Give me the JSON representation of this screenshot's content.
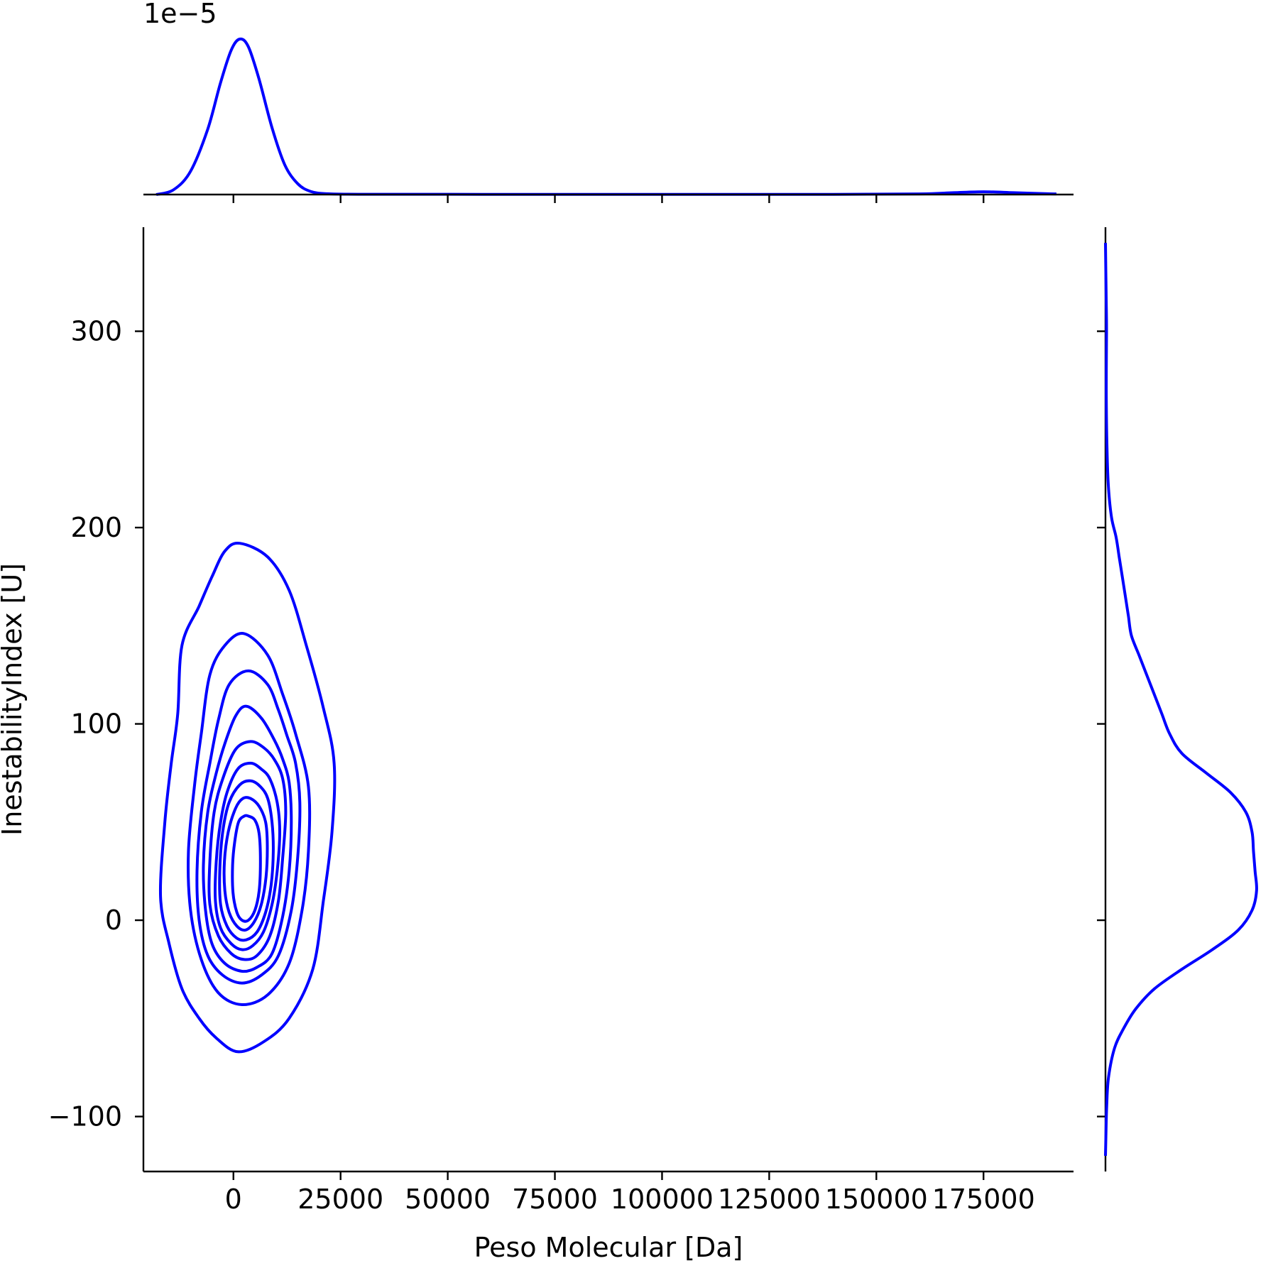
{
  "chart_data": {
    "type": "kde-jointplot",
    "color": "#0000ff",
    "xlabel": "Peso Molecular [Da]",
    "ylabel": "InestabilityIndex [U]",
    "xlim": [
      -21000,
      196000
    ],
    "ylim": [
      -128,
      353
    ],
    "x_ticks": [
      0,
      25000,
      50000,
      75000,
      100000,
      125000,
      150000,
      175000
    ],
    "x_tick_labels": [
      "0",
      "25000",
      "50000",
      "75000",
      "100000",
      "125000",
      "150000",
      "175000"
    ],
    "y_ticks": [
      -100,
      0,
      100,
      200,
      300
    ],
    "y_tick_labels": [
      "−100",
      "0",
      "100",
      "200",
      "300"
    ],
    "top_marginal": {
      "offset_label": "1e−5",
      "ymax": 1.0,
      "points": [
        [
          -18000,
          0.0
        ],
        [
          -14000,
          0.03
        ],
        [
          -10000,
          0.15
        ],
        [
          -6000,
          0.42
        ],
        [
          -3000,
          0.72
        ],
        [
          -500,
          0.93
        ],
        [
          1500,
          1.0
        ],
        [
          3500,
          0.95
        ],
        [
          6000,
          0.74
        ],
        [
          9000,
          0.43
        ],
        [
          12000,
          0.19
        ],
        [
          15000,
          0.07
        ],
        [
          18000,
          0.02
        ],
        [
          22000,
          0.005
        ],
        [
          30000,
          0.002
        ],
        [
          60000,
          0.0015
        ],
        [
          100000,
          0.0015
        ],
        [
          140000,
          0.0015
        ],
        [
          160000,
          0.004
        ],
        [
          168000,
          0.012
        ],
        [
          175000,
          0.018
        ],
        [
          182000,
          0.012
        ],
        [
          190000,
          0.005
        ],
        [
          192000,
          0.004
        ]
      ]
    },
    "right_marginal": {
      "xmax": 1.0,
      "points": [
        [
          -120,
          0.0
        ],
        [
          -110,
          0.003
        ],
        [
          -95,
          0.008
        ],
        [
          -80,
          0.02
        ],
        [
          -65,
          0.06
        ],
        [
          -55,
          0.12
        ],
        [
          -45,
          0.2
        ],
        [
          -35,
          0.32
        ],
        [
          -25,
          0.5
        ],
        [
          -15,
          0.7
        ],
        [
          -5,
          0.87
        ],
        [
          5,
          0.96
        ],
        [
          15,
          0.99
        ],
        [
          25,
          0.98
        ],
        [
          35,
          0.97
        ],
        [
          45,
          0.96
        ],
        [
          55,
          0.92
        ],
        [
          65,
          0.82
        ],
        [
          75,
          0.66
        ],
        [
          85,
          0.5
        ],
        [
          95,
          0.42
        ],
        [
          105,
          0.37
        ],
        [
          115,
          0.32
        ],
        [
          125,
          0.27
        ],
        [
          135,
          0.22
        ],
        [
          145,
          0.17
        ],
        [
          155,
          0.15
        ],
        [
          165,
          0.13
        ],
        [
          175,
          0.11
        ],
        [
          185,
          0.09
        ],
        [
          195,
          0.07
        ],
        [
          205,
          0.04
        ],
        [
          220,
          0.02
        ],
        [
          240,
          0.01
        ],
        [
          270,
          0.005
        ],
        [
          300,
          0.007
        ],
        [
          320,
          0.004
        ],
        [
          345,
          0.0
        ]
      ]
    },
    "contours": [
      {
        "level": 1,
        "points": [
          [
            1500,
            192
          ],
          [
            8000,
            185
          ],
          [
            13000,
            168
          ],
          [
            17000,
            140
          ],
          [
            21000,
            108
          ],
          [
            23500,
            80
          ],
          [
            23000,
            45
          ],
          [
            21000,
            10
          ],
          [
            18500,
            -25
          ],
          [
            13000,
            -50
          ],
          [
            7000,
            -62
          ],
          [
            1000,
            -67
          ],
          [
            -4000,
            -60
          ],
          [
            -8000,
            -50
          ],
          [
            -12000,
            -35
          ],
          [
            -15000,
            -12
          ],
          [
            -17000,
            12
          ],
          [
            -16000,
            50
          ],
          [
            -14500,
            80
          ],
          [
            -13000,
            105
          ],
          [
            -12000,
            140
          ],
          [
            -8000,
            160
          ],
          [
            -5000,
            175
          ],
          [
            -2000,
            188
          ]
        ]
      },
      {
        "level": 2,
        "points": [
          [
            2500,
            146
          ],
          [
            8000,
            135
          ],
          [
            11500,
            115
          ],
          [
            14500,
            95
          ],
          [
            17500,
            68
          ],
          [
            17500,
            35
          ],
          [
            16000,
            5
          ],
          [
            13000,
            -22
          ],
          [
            8000,
            -38
          ],
          [
            2000,
            -43
          ],
          [
            -3500,
            -37
          ],
          [
            -7500,
            -20
          ],
          [
            -10000,
            5
          ],
          [
            -10500,
            35
          ],
          [
            -9000,
            70
          ],
          [
            -7500,
            95
          ],
          [
            -5500,
            125
          ],
          [
            -2000,
            140
          ]
        ]
      },
      {
        "level": 3,
        "points": [
          [
            3500,
            127
          ],
          [
            8000,
            120
          ],
          [
            10500,
            107
          ],
          [
            12500,
            94
          ],
          [
            14500,
            80
          ],
          [
            15500,
            60
          ],
          [
            15000,
            32
          ],
          [
            13500,
            5
          ],
          [
            10500,
            -18
          ],
          [
            6500,
            -28
          ],
          [
            2000,
            -32
          ],
          [
            -2500,
            -28
          ],
          [
            -6000,
            -18
          ],
          [
            -8000,
            0
          ],
          [
            -8500,
            25
          ],
          [
            -7500,
            55
          ],
          [
            -5500,
            80
          ],
          [
            -3500,
            102
          ],
          [
            -1000,
            120
          ]
        ]
      },
      {
        "level": 4,
        "points": [
          [
            3000,
            109
          ],
          [
            6500,
            103
          ],
          [
            9500,
            92
          ],
          [
            11500,
            82
          ],
          [
            13000,
            70
          ],
          [
            13500,
            50
          ],
          [
            13000,
            25
          ],
          [
            11500,
            2
          ],
          [
            9000,
            -17
          ],
          [
            5500,
            -24
          ],
          [
            2000,
            -26
          ],
          [
            -2000,
            -22
          ],
          [
            -5000,
            -12
          ],
          [
            -6500,
            5
          ],
          [
            -7000,
            28
          ],
          [
            -6000,
            55
          ],
          [
            -4000,
            75
          ],
          [
            -2000,
            90
          ],
          [
            500,
            104
          ]
        ]
      },
      {
        "level": 5,
        "points": [
          [
            4000,
            91
          ],
          [
            7000,
            88
          ],
          [
            9500,
            82
          ],
          [
            11500,
            72
          ],
          [
            12200,
            55
          ],
          [
            11500,
            32
          ],
          [
            10500,
            10
          ],
          [
            8500,
            -8
          ],
          [
            5500,
            -18
          ],
          [
            2500,
            -20
          ],
          [
            -500,
            -17
          ],
          [
            -3500,
            -8
          ],
          [
            -5500,
            8
          ],
          [
            -5500,
            30
          ],
          [
            -4500,
            55
          ],
          [
            -2500,
            72
          ],
          [
            500,
            87
          ]
        ]
      },
      {
        "level": 6,
        "points": [
          [
            4000,
            80
          ],
          [
            6500,
            77
          ],
          [
            8500,
            72
          ],
          [
            10200,
            60
          ],
          [
            10800,
            45
          ],
          [
            10200,
            25
          ],
          [
            9000,
            8
          ],
          [
            7000,
            -6
          ],
          [
            4500,
            -13
          ],
          [
            2000,
            -15
          ],
          [
            -500,
            -12
          ],
          [
            -3000,
            -4
          ],
          [
            -4200,
            10
          ],
          [
            -4000,
            30
          ],
          [
            -3000,
            50
          ],
          [
            -1500,
            65
          ],
          [
            1000,
            77
          ]
        ]
      },
      {
        "level": 7,
        "points": [
          [
            4000,
            71
          ],
          [
            6300,
            68
          ],
          [
            8000,
            62
          ],
          [
            9000,
            50
          ],
          [
            9300,
            35
          ],
          [
            8800,
            18
          ],
          [
            7500,
            4
          ],
          [
            5500,
            -6
          ],
          [
            3000,
            -10
          ],
          [
            700,
            -9
          ],
          [
            -1500,
            -3
          ],
          [
            -3000,
            8
          ],
          [
            -3200,
            25
          ],
          [
            -2500,
            45
          ],
          [
            -1000,
            60
          ],
          [
            1500,
            69
          ]
        ]
      },
      {
        "level": 8,
        "points": [
          [
            4000,
            62
          ],
          [
            6000,
            58
          ],
          [
            7500,
            50
          ],
          [
            7900,
            38
          ],
          [
            7600,
            22
          ],
          [
            6500,
            8
          ],
          [
            4800,
            -1
          ],
          [
            2800,
            -5
          ],
          [
            800,
            -3
          ],
          [
            -1000,
            4
          ],
          [
            -2000,
            15
          ],
          [
            -2100,
            30
          ],
          [
            -1200,
            45
          ],
          [
            500,
            57
          ],
          [
            2200,
            62
          ]
        ]
      },
      {
        "level": 9,
        "points": [
          [
            3500,
            53
          ],
          [
            5000,
            51
          ],
          [
            6000,
            44
          ],
          [
            6300,
            30
          ],
          [
            6000,
            15
          ],
          [
            5000,
            5
          ],
          [
            3500,
            0
          ],
          [
            2000,
            0
          ],
          [
            800,
            4
          ],
          [
            -100,
            14
          ],
          [
            -200,
            28
          ],
          [
            300,
            40
          ],
          [
            1200,
            50
          ],
          [
            2500,
            53
          ]
        ]
      }
    ]
  }
}
